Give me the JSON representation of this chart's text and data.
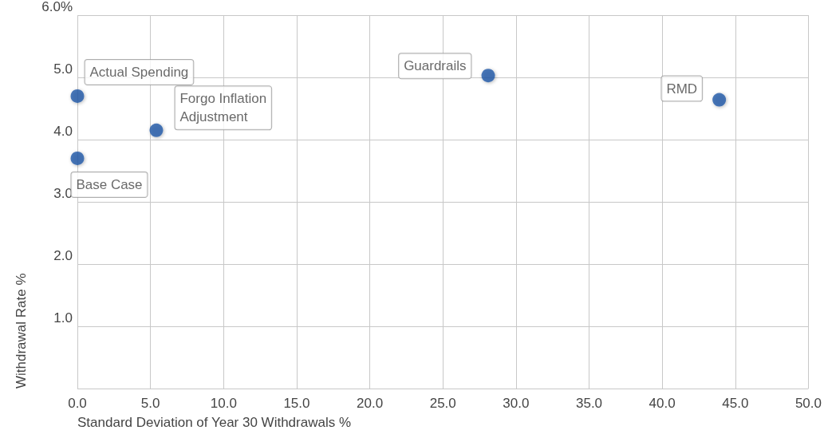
{
  "chart_data": {
    "type": "scatter",
    "xlabel": "Standard Deviation of Year 30 Withdrawals %",
    "ylabel": "Withdrawal Rate %",
    "x": [
      0,
      0,
      5.4,
      28.1,
      43.9
    ],
    "series": [
      {
        "color": "#1f57a8",
        "values": [
          4.7,
          3.7,
          4.15,
          5.03,
          4.64
        ]
      }
    ],
    "annotations": [
      {
        "text": "Actual Spending",
        "x": 0,
        "y": 4.7
      },
      {
        "text": "Base Case",
        "x": 0,
        "y": 3.7
      },
      {
        "text": "Forgo Inflation\nAdjustment",
        "x": 5.4,
        "y": 4.15
      },
      {
        "text": "Guardrails",
        "x": 28.1,
        "y": 5.03
      },
      {
        "text": "RMD",
        "x": 43.9,
        "y": 4.64
      }
    ],
    "xlim": [
      0,
      50
    ],
    "xticks": [
      {
        "value": 0,
        "label": "0.0"
      },
      {
        "value": 5,
        "label": "5.0"
      },
      {
        "value": 10,
        "label": "10.0"
      },
      {
        "value": 15,
        "label": "15.0"
      },
      {
        "value": 20,
        "label": "20.0"
      },
      {
        "value": 25,
        "label": "25.0"
      },
      {
        "value": 30,
        "label": "30.0"
      },
      {
        "value": 35,
        "label": "35.0"
      },
      {
        "value": 40,
        "label": "40.0"
      },
      {
        "value": 45,
        "label": "45.0"
      },
      {
        "value": 50,
        "label": "50.0"
      }
    ],
    "ylim": [
      0,
      6
    ],
    "yticks": [
      {
        "value": 0,
        "label": null
      },
      {
        "value": 1,
        "label": "1.0"
      },
      {
        "value": 2,
        "label": "2.0"
      },
      {
        "value": 3,
        "label": "3.0"
      },
      {
        "value": 4,
        "label": "4.0"
      },
      {
        "value": 5,
        "label": "5.0"
      },
      {
        "value": 6,
        "label": "6.0%"
      }
    ],
    "grid": true,
    "marker": "circle"
  }
}
